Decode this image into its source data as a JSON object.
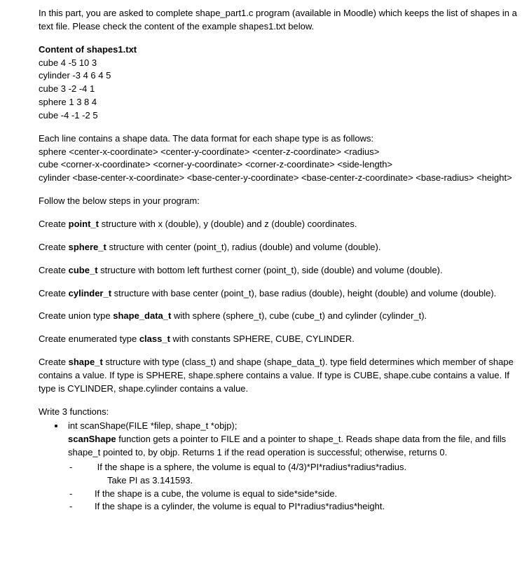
{
  "intro": "In this part, you are asked to complete shape_part1.c program (available in Moodle) which keeps the list of shapes in a text file. Please check the content of the example shapes1.txt below.",
  "content_heading": "Content of shapes1.txt",
  "file_lines": [
    "cube 4 -5 10 3",
    "cylinder -3 4 6 4 5",
    "cube 3 -2 -4 1",
    "sphere 1 3 8 4",
    "cube -4 -1 -2 5"
  ],
  "format_intro": "Each line contains a shape data. The data format for each shape type is as follows:",
  "format_lines": [
    "sphere <center-x-coordinate> <center-y-coordinate> <center-z-coordinate> <radius>",
    "cube <corner-x-coordinate> <corner-y-coordinate> <corner-z-coordinate> <side-length>",
    "cylinder <base-center-x-coordinate> <base-center-y-coordinate> <base-center-z-coordinate> <base-radius> <height>"
  ],
  "follow_steps": "Follow the below steps in your program:",
  "steps": [
    {
      "pre": "Create ",
      "bold": "point_t",
      "post": " structure with x (double), y (double) and z (double) coordinates."
    },
    {
      "pre": "Create ",
      "bold": "sphere_t",
      "post": " structure with center (point_t), radius (double) and volume (double)."
    },
    {
      "pre": "Create ",
      "bold": "cube_t",
      "post": " structure with bottom left furthest corner (point_t), side (double) and volume (double)."
    },
    {
      "pre": "Create ",
      "bold": "cylinder_t",
      "post": " structure with base center (point_t), base radius (double), height (double) and volume (double)."
    },
    {
      "pre": "Create union type ",
      "bold": "shape_data_t",
      "post": " with sphere (sphere_t), cube (cube_t) and cylinder (cylinder_t)."
    },
    {
      "pre": "Create enumerated type ",
      "bold": "class_t",
      "post": " with constants SPHERE, CUBE, CYLINDER."
    },
    {
      "pre": "Create ",
      "bold": "shape_t",
      "post": " structure with type (class_t) and shape (shape_data_t). type field determines which member of shape contains a value. If type is SPHERE, shape.sphere contains a value. If type is CUBE, shape.cube contains a value. If type is CYLINDER, shape.cylinder contains a value."
    }
  ],
  "functions_heading": "Write 3 functions:",
  "fn1": {
    "sig": "int scanShape(FILE *filep, shape_t *objp);",
    "desc_bold": "scanShape",
    "desc_rest": " function gets a pointer to FILE and a pointer to shape_t. Reads shape data from the file, and fills shape_t pointed to, by objp. Returns 1 if the read operation is successful; otherwise, returns 0.",
    "sub": [
      "If the shape is a sphere, the volume is equal to (4/3)*PI*radius*radius*radius.",
      "Take PI as 3.141593.",
      "If the shape is a cube, the volume is equal to side*side*side.",
      "If the shape is a cylinder, the volume is equal to PI*radius*radius*height."
    ]
  }
}
